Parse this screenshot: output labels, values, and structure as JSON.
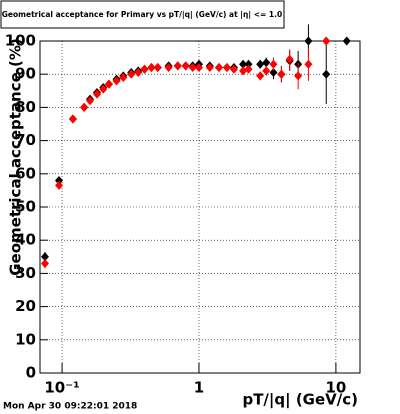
{
  "chart_data": {
    "type": "scatter",
    "title": "Geometrical acceptance for Primary vs pT/|q| (GeV/c) at |η| <= 1.0",
    "x_label": "pT/|q| (GeV/c)",
    "y_label": "Geometrical acceptance (%)",
    "timestamp": "Mon Apr 30 09:22:01 2018",
    "x": [
      0.075,
      0.095,
      0.12,
      0.145,
      0.16,
      0.18,
      0.2,
      0.22,
      0.25,
      0.28,
      0.32,
      0.36,
      0.4,
      0.45,
      0.5,
      0.6,
      0.7,
      0.8,
      0.9,
      1.0,
      1.2,
      1.4,
      1.6,
      1.8,
      2.1,
      2.3,
      2.8,
      3.1,
      3.5,
      4.0,
      4.6,
      5.3,
      6.3,
      8.5,
      12
    ],
    "series": [
      {
        "color": "#000000",
        "values": [
          35,
          58,
          76.5,
          80,
          82.5,
          84.5,
          86,
          87,
          88.5,
          89.5,
          90.5,
          91,
          91.5,
          92,
          92,
          92.5,
          92.5,
          92.5,
          92.5,
          93,
          92.5,
          92,
          92,
          92,
          93,
          93,
          93,
          93.5,
          90.5,
          90,
          94,
          93,
          100,
          90,
          100
        ],
        "errors": [
          1.5,
          1,
          0.8,
          0.6,
          0.5,
          0.5,
          0.4,
          0.4,
          0.3,
          0.3,
          0.3,
          0.3,
          0.3,
          0.3,
          0.3,
          0.3,
          0.3,
          0.3,
          0.3,
          0.4,
          0.4,
          0.5,
          0.6,
          0.7,
          0.9,
          1,
          1.3,
          1.5,
          2,
          2.5,
          3,
          4,
          5,
          9,
          0
        ]
      },
      {
        "color": "#ff0000",
        "values": [
          33,
          56.5,
          76.5,
          80,
          82,
          84,
          85.5,
          87,
          88,
          89,
          90,
          90.5,
          91.5,
          92,
          92,
          92,
          92.5,
          92.5,
          92,
          92,
          92,
          92,
          92,
          91.5,
          91,
          91.5,
          89.5,
          91,
          93,
          90,
          94.5,
          89.5,
          93,
          100,
          null
        ],
        "errors": [
          1.5,
          1,
          0.8,
          0.6,
          0.5,
          0.5,
          0.4,
          0.4,
          0.3,
          0.3,
          0.3,
          0.3,
          0.3,
          0.3,
          0.3,
          0.3,
          0.3,
          0.3,
          0.3,
          0.4,
          0.4,
          0.5,
          0.6,
          0.7,
          0.9,
          1,
          1.3,
          1.5,
          2,
          2.5,
          3,
          4,
          5,
          0,
          null
        ]
      }
    ],
    "log_x": true,
    "xlim": [
      0.069,
      15
    ],
    "xticks": [
      {
        "value": 0.1,
        "label": "10⁻¹"
      },
      1,
      10
    ],
    "ylim": [
      0,
      100
    ],
    "yticks": [
      0,
      10,
      20,
      30,
      40,
      50,
      60,
      70,
      80,
      90,
      100
    ],
    "grid": true
  }
}
